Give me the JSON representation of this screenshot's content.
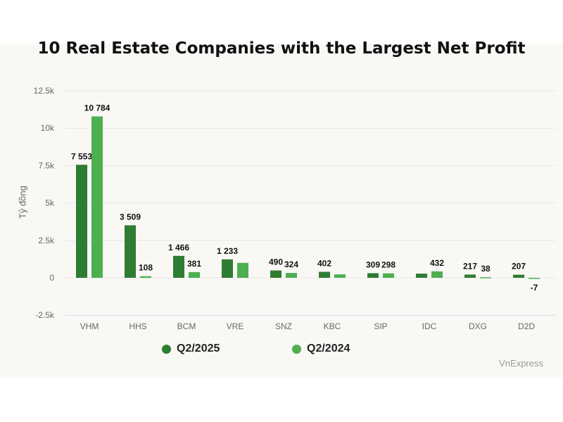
{
  "chart_data": {
    "type": "bar",
    "title": "10 Real Estate Companies with the Largest Net Profit",
    "ylabel": "Tỷ đồng",
    "ylim": [
      -2500,
      12500
    ],
    "yticks": [
      -2500,
      0,
      2500,
      5000,
      7500,
      10000,
      12500
    ],
    "ytick_labels": [
      "-2.5k",
      "0",
      "2.5k",
      "5k",
      "7.5k",
      "10k",
      "12.5k"
    ],
    "grid": true,
    "legend_position": "bottom",
    "categories": [
      "VHM",
      "HHS",
      "BCM",
      "VRE",
      "SNZ",
      "KBC",
      "SIP",
      "IDC",
      "DXG",
      "D2D"
    ],
    "series": [
      {
        "name": "Q2/2025",
        "color": "#2e7d32",
        "values": [
          7553,
          3509,
          1466,
          1233,
          490,
          402,
          309,
          280,
          217,
          207
        ],
        "labels": [
          "7 553",
          "3 509",
          "1 466",
          "1 233",
          "490",
          "402",
          "309",
          null,
          "217",
          "207"
        ]
      },
      {
        "name": "Q2/2024",
        "color": "#4caf50",
        "values": [
          10784,
          108,
          381,
          1000,
          324,
          230,
          298,
          432,
          38,
          -7
        ],
        "labels": [
          "10 784",
          "108",
          "381",
          null,
          "324",
          null,
          "298",
          "432",
          "38",
          "-7"
        ]
      }
    ]
  },
  "source": "VnExpress"
}
